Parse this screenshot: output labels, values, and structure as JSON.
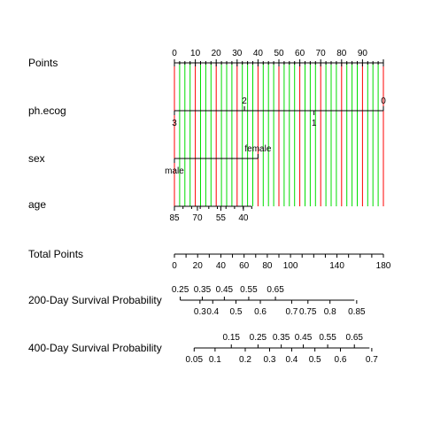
{
  "chart_data": {
    "type": "nomogram",
    "variables": [
      "Points",
      "ph.ecog",
      "sex",
      "age",
      "Total Points",
      "200-Day Survival Probability",
      "400-Day Survival Probability"
    ],
    "points_scale": {
      "min": 0,
      "max": 100,
      "labels": [
        {
          "v": 0,
          "t": "0"
        },
        {
          "v": 10,
          "t": "10"
        },
        {
          "v": 20,
          "t": "20"
        },
        {
          "v": 30,
          "t": "30"
        },
        {
          "v": 40,
          "t": "40"
        },
        {
          "v": 50,
          "t": "50"
        },
        {
          "v": 60,
          "t": "60"
        },
        {
          "v": 70,
          "t": "70"
        },
        {
          "v": 80,
          "t": "80"
        },
        {
          "v": 90,
          "t": "90"
        }
      ]
    },
    "ph_ecog": {
      "range": [
        0,
        100
      ],
      "labels": [
        {
          "points": 0,
          "t": "3",
          "pos": "below"
        },
        {
          "points": 33.5,
          "t": "2",
          "pos": "above"
        },
        {
          "points": 66.8,
          "t": "1",
          "pos": "below"
        },
        {
          "points": 100,
          "t": "0",
          "pos": "above"
        }
      ]
    },
    "sex": {
      "range": [
        0,
        40
      ],
      "labels": [
        {
          "points": 0,
          "t": "male",
          "pos": "below"
        },
        {
          "points": 40,
          "t": "female",
          "pos": "above"
        }
      ]
    },
    "age": {
      "range": [
        0,
        37
      ],
      "labels": [
        {
          "points": 0,
          "t": "85"
        },
        {
          "points": 11,
          "t": "70"
        },
        {
          "points": 22.2,
          "t": "55"
        },
        {
          "points": 33,
          "t": "40"
        }
      ]
    },
    "total_points": {
      "min": 0,
      "max": 180,
      "labels": [
        {
          "v": 0,
          "t": "0"
        },
        {
          "v": 20,
          "t": "20"
        },
        {
          "v": 40,
          "t": "40"
        },
        {
          "v": 60,
          "t": "60"
        },
        {
          "v": 80,
          "t": "80"
        },
        {
          "v": 100,
          "t": "100"
        },
        {
          "v": 140,
          "t": "140"
        },
        {
          "v": 180,
          "t": "180"
        }
      ]
    },
    "surv200": {
      "range": [
        5,
        155
      ],
      "labels": [
        {
          "tp": 5,
          "t": "0.25",
          "pos": "above"
        },
        {
          "tp": 22,
          "t": "0.3",
          "pos": "below"
        },
        {
          "tp": 24,
          "t": "0.35",
          "pos": "above"
        },
        {
          "tp": 33,
          "t": "0.4",
          "pos": "below"
        },
        {
          "tp": 43,
          "t": "0.45",
          "pos": "above"
        },
        {
          "tp": 53,
          "t": "0.5",
          "pos": "below"
        },
        {
          "tp": 64,
          "t": "0.55",
          "pos": "above"
        },
        {
          "tp": 74,
          "t": "0.6",
          "pos": "below"
        },
        {
          "tp": 87,
          "t": "0.65",
          "pos": "above"
        },
        {
          "tp": 101,
          "t": "0.7",
          "pos": "below"
        },
        {
          "tp": 115,
          "t": "0.75",
          "pos": "below"
        },
        {
          "tp": 134,
          "t": "0.8",
          "pos": "below"
        },
        {
          "tp": 157,
          "t": "0.85",
          "pos": "below"
        }
      ]
    },
    "surv400": {
      "range": [
        17,
        168
      ],
      "labels": [
        {
          "tp": 17,
          "t": "0.05",
          "pos": "below"
        },
        {
          "tp": 35,
          "t": "0.1",
          "pos": "below"
        },
        {
          "tp": 49,
          "t": "0.15",
          "pos": "above"
        },
        {
          "tp": 61,
          "t": "0.2",
          "pos": "below"
        },
        {
          "tp": 72,
          "t": "0.25",
          "pos": "above"
        },
        {
          "tp": 82,
          "t": "0.3",
          "pos": "below"
        },
        {
          "tp": 92,
          "t": "0.35",
          "pos": "above"
        },
        {
          "tp": 101,
          "t": "0.4",
          "pos": "below"
        },
        {
          "tp": 111,
          "t": "0.45",
          "pos": "above"
        },
        {
          "tp": 121,
          "t": "0.5",
          "pos": "below"
        },
        {
          "tp": 132,
          "t": "0.55",
          "pos": "above"
        },
        {
          "tp": 143,
          "t": "0.6",
          "pos": "below"
        },
        {
          "tp": 155,
          "t": "0.65",
          "pos": "above"
        },
        {
          "tp": 170,
          "t": "0.7",
          "pos": "below"
        }
      ]
    },
    "colors": {
      "major_grid": "#ff0000",
      "minor_grid": "#00dd00",
      "axis": "#000000"
    }
  }
}
